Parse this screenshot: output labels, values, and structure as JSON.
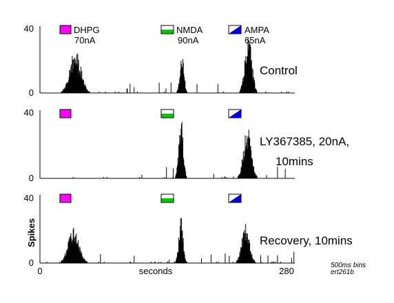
{
  "chart_data": [
    {
      "type": "histogram",
      "condition_label": "Control",
      "y_max_label": "40",
      "y_min_label": "0",
      "ylim": [
        0,
        40
      ],
      "xlim": [
        0,
        280
      ],
      "drugs": [
        {
          "name": "DHPG",
          "current": "70nA",
          "icon": "solid-magenta",
          "fill": "#ff00ff"
        },
        {
          "name": "NMDA",
          "current": "90nA",
          "icon": "white-over-green",
          "fill": "#00cc00"
        },
        {
          "name": "AMPA",
          "current": "65nA",
          "icon": "white-blue-diagonal",
          "fill": "#0000dd"
        }
      ],
      "peaks": [
        {
          "center": 39,
          "width": 6,
          "height": 23
        },
        {
          "center": 156,
          "width": 2.2,
          "height": 22
        },
        {
          "center": 229,
          "width": 3.8,
          "height": 30
        }
      ]
    },
    {
      "type": "histogram",
      "condition_label_lines": [
        "LY367385, 20nA,",
        "10mins"
      ],
      "y_max_label": "40",
      "y_min_label": "0",
      "ylim": [
        0,
        40
      ],
      "xlim": [
        0,
        280
      ],
      "drugs": [
        {
          "icon": "solid-magenta",
          "fill": "#ff00ff"
        },
        {
          "icon": "white-over-green",
          "fill": "#00cc00"
        },
        {
          "icon": "white-blue-diagonal",
          "fill": "#0000dd"
        }
      ],
      "peaks": [
        {
          "center": 155,
          "width": 2.4,
          "height": 32
        },
        {
          "center": 228,
          "width": 4.2,
          "height": 27
        }
      ]
    },
    {
      "type": "histogram",
      "condition_label": "Recovery, 10mins",
      "y_max_label": "40",
      "y_min_label": "0",
      "ylabel": "Spikes",
      "xlabel": "seconds",
      "x_tick_labels": [
        "0",
        "280"
      ],
      "ylim": [
        0,
        40
      ],
      "xlim": [
        0,
        280
      ],
      "drugs": [
        {
          "icon": "solid-magenta",
          "fill": "#ff00ff"
        },
        {
          "icon": "white-over-green",
          "fill": "#00cc00"
        },
        {
          "icon": "white-blue-diagonal",
          "fill": "#0000dd"
        }
      ],
      "peaks": [
        {
          "center": 37,
          "width": 6,
          "height": 18
        },
        {
          "center": 155,
          "width": 2.4,
          "height": 24
        },
        {
          "center": 226,
          "width": 4.2,
          "height": 20
        }
      ]
    }
  ],
  "footnote": {
    "bin_note": "500ms bins",
    "file_id": "ert261b"
  }
}
